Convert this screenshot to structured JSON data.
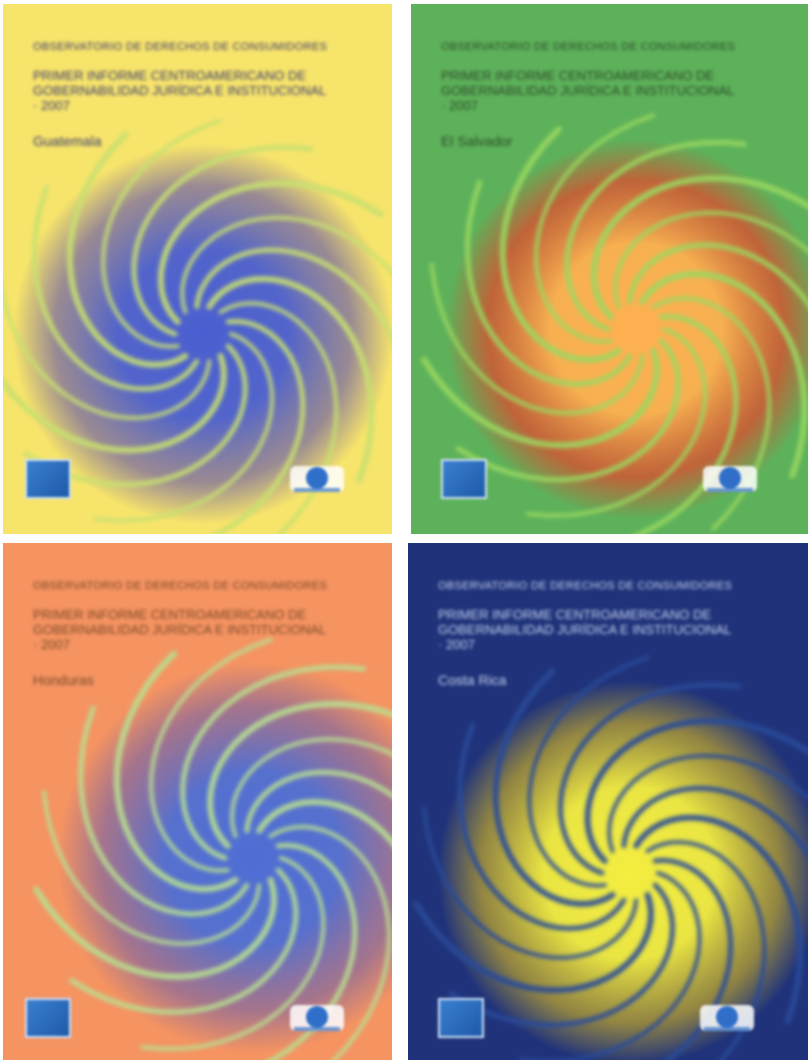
{
  "covers": [
    {
      "id": "cover-1",
      "org": "Observatorio de Derechos de Consumidores",
      "title": "Primer Informe Centroamericano de Gobernabilidad Jurídica e Institucional · 2007",
      "country": "Guatemala",
      "colors": {
        "background": "#f7e46b",
        "text": "#3a3a70",
        "swirl_center": "#4a5ed0",
        "swirl_rays": "#c8e070",
        "halo": "#7a6ca0"
      }
    },
    {
      "id": "cover-2",
      "org": "Observatorio de Derechos de Consumidores",
      "title": "Primer Informe Centroamericano de Gobernabilidad Jurídica e Institucional · 2007",
      "country": "El Salvador",
      "colors": {
        "background": "#5db15a",
        "text": "#2d4a2a",
        "swirl_center": "#ffb050",
        "swirl_rays": "#9ad860",
        "halo": "#e04a2e"
      }
    },
    {
      "id": "cover-3",
      "org": "Observatorio de Derechos de Consumidores",
      "title": "Primer Informe Centroamericano de Gobernabilidad Jurídica e Institucional · 2007",
      "country": "Honduras",
      "colors": {
        "background": "#f59361",
        "text": "#7a4a2a",
        "swirl_center": "#4e6ed4",
        "swirl_rays": "#b8e090",
        "halo": "#8a6a9a"
      }
    },
    {
      "id": "cover-4",
      "org": "Observatorio de Derechos de Consumidores",
      "title": "Primer Informe Centroamericano de Gobernabilidad Jurídica e Institucional · 2007",
      "country": "Costa Rica",
      "colors": {
        "background": "#20337a",
        "text": "#c8d4f0",
        "swirl_center": "#f4ee40",
        "swirl_rays": "#2a4a9a",
        "halo": "#b8a030"
      }
    }
  ],
  "icons": {
    "left_logo": "publisher-logo-icon",
    "right_logo": "partner-logo-icon"
  }
}
